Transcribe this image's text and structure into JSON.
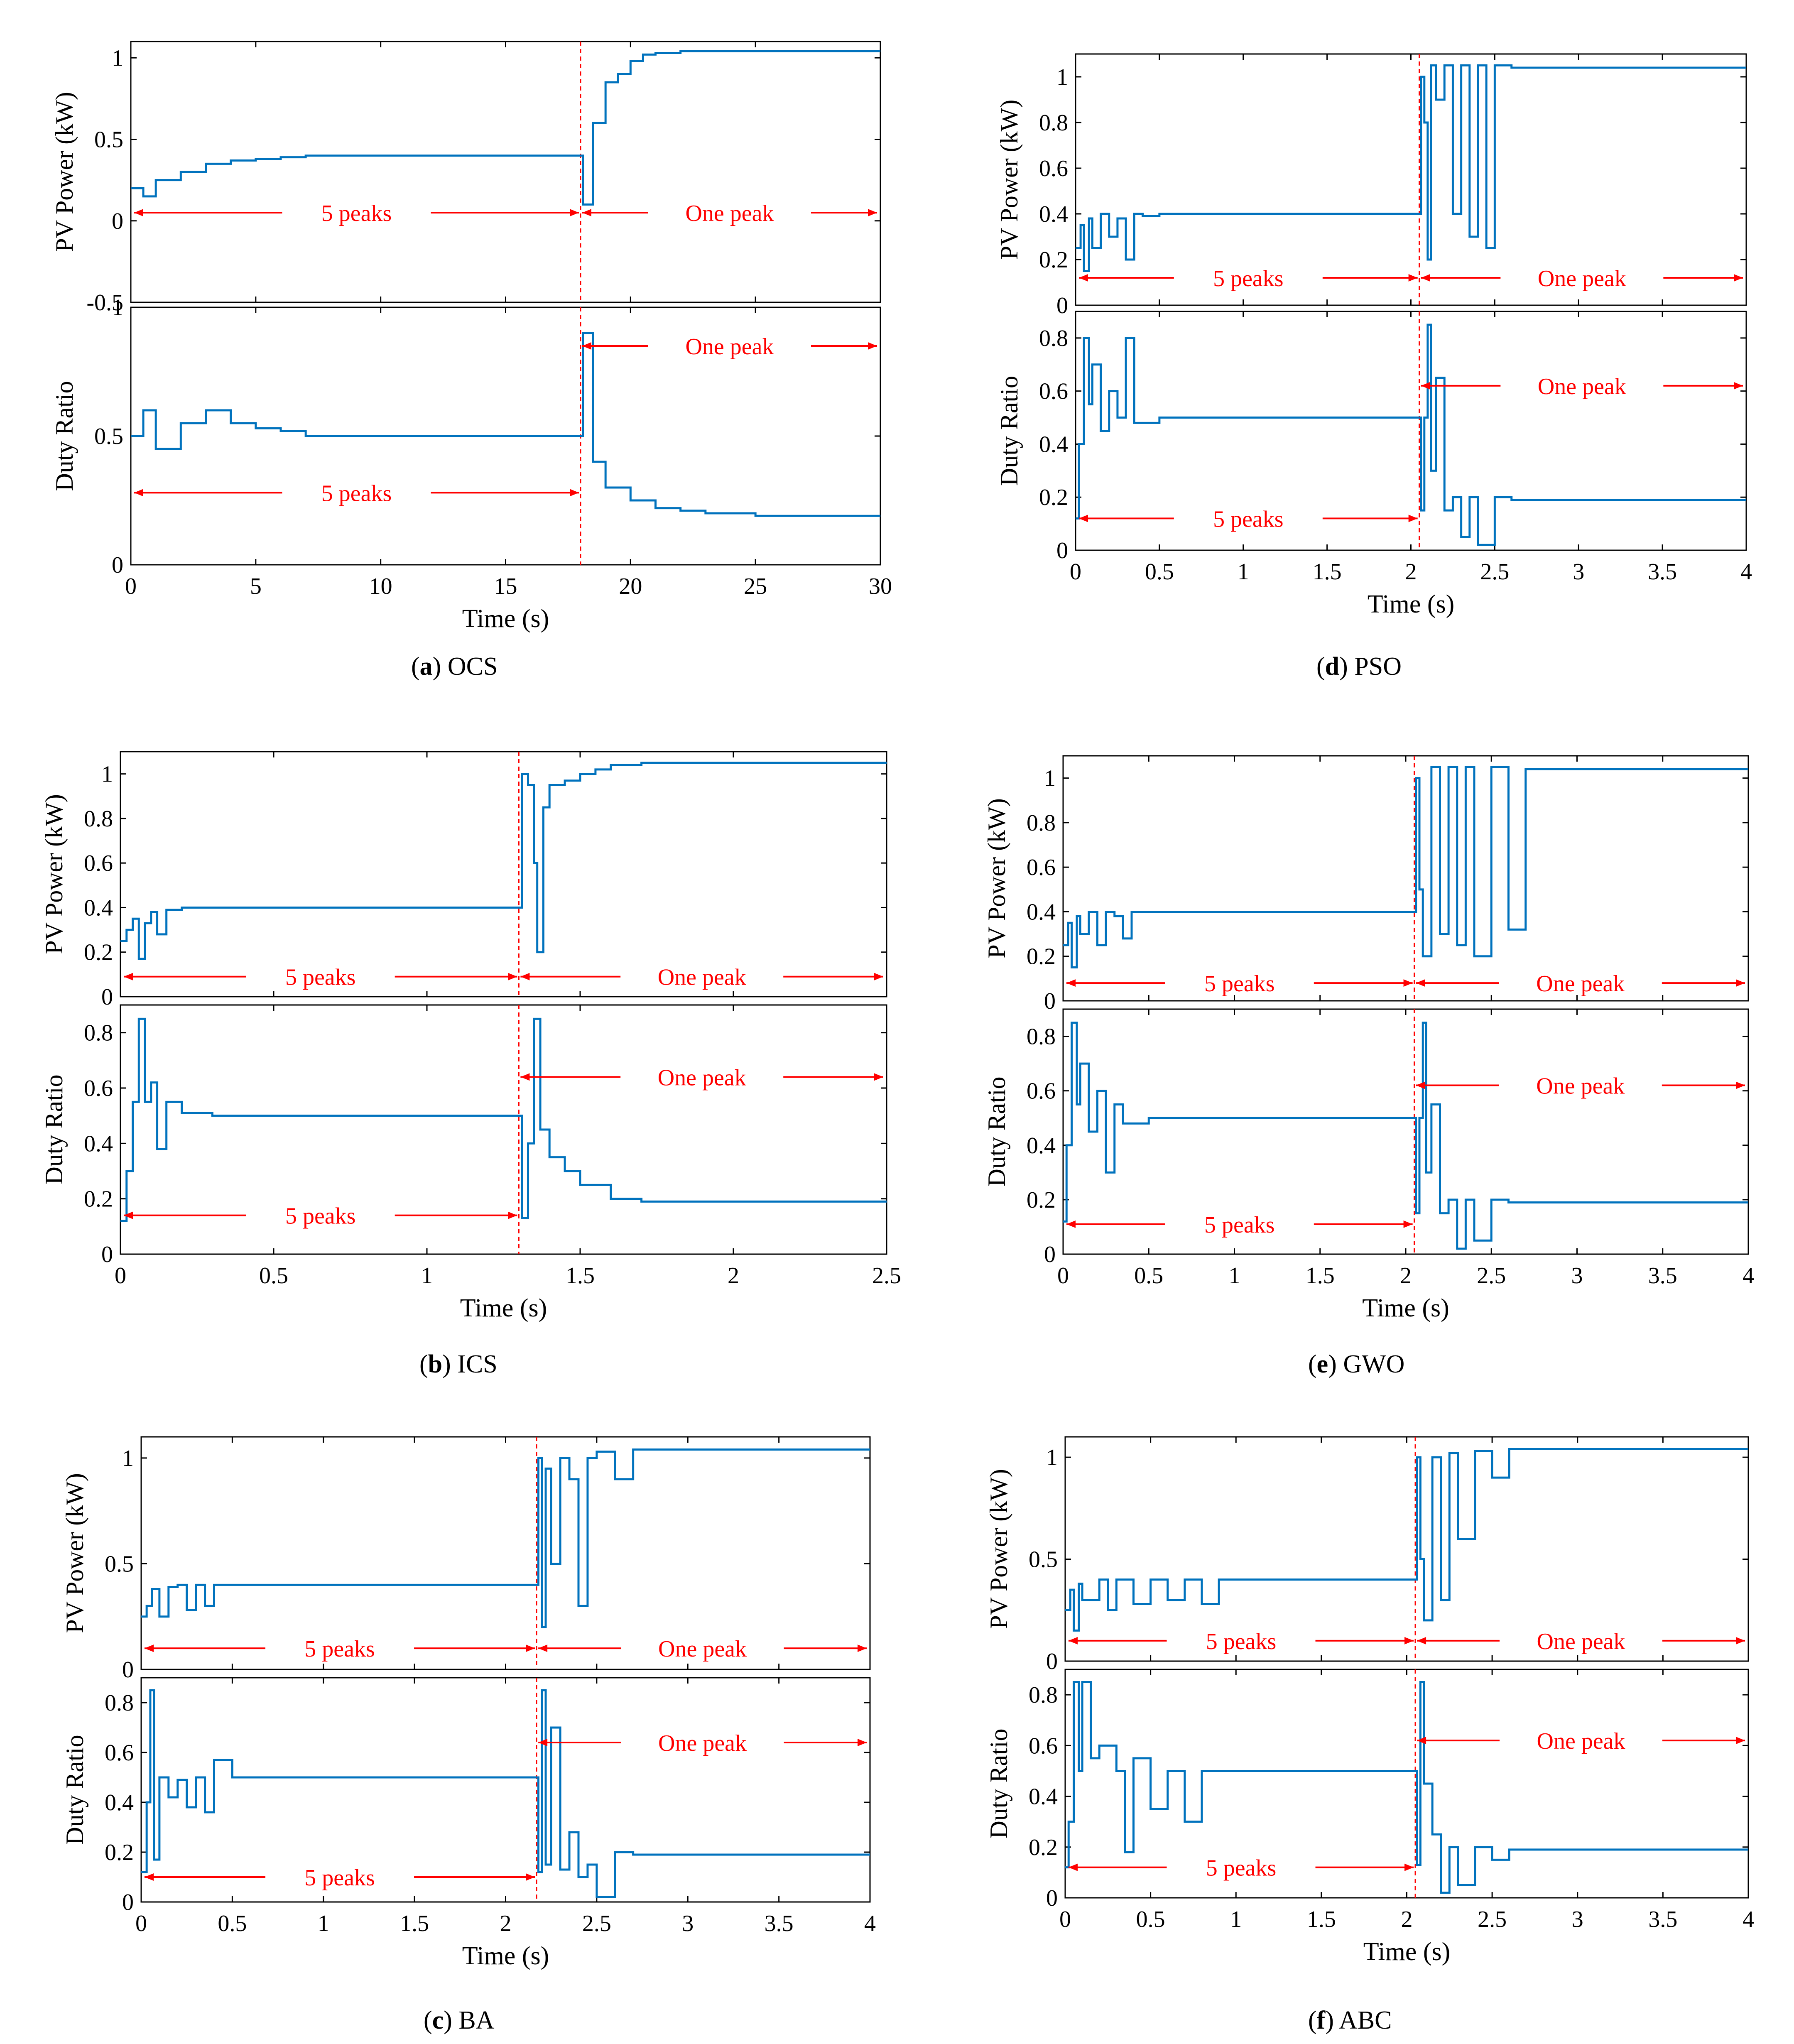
{
  "colors": {
    "signal": "#0072BD",
    "annotation": "#FF0000",
    "axis": "#000000"
  },
  "chart_data": [
    {
      "id": "a",
      "type": "line",
      "caption_letter": "a",
      "caption_name": "OCS",
      "xlabel": "Time (s)",
      "xlim": [
        0,
        30
      ],
      "xticks": [
        0,
        5,
        10,
        15,
        20,
        25,
        30
      ],
      "xtick_labels": [
        "0",
        "5",
        "10",
        "15",
        "20",
        "25",
        "30"
      ],
      "change_time": 18,
      "top": {
        "ylabel": "PV Power (kW)",
        "ylim": [
          -0.5,
          1.1
        ],
        "yticks": [
          -0.5,
          0,
          0.5,
          1
        ],
        "ytick_labels": [
          "-0.5",
          "0",
          "0.5",
          "1"
        ],
        "label_left": "5 peaks",
        "label_right": "One peak",
        "arrow_y": 0.05,
        "series": {
          "name": "PV Power",
          "x": [
            0,
            0.5,
            1,
            2,
            3,
            4,
            5,
            6,
            7,
            18,
            18.1,
            18.5,
            19,
            19.5,
            20,
            20.5,
            21,
            22,
            30
          ],
          "y": [
            0.2,
            0.15,
            0.25,
            0.3,
            0.35,
            0.37,
            0.38,
            0.39,
            0.4,
            0.4,
            0.1,
            0.6,
            0.85,
            0.9,
            0.98,
            1.02,
            1.03,
            1.04,
            1.04
          ]
        }
      },
      "bottom": {
        "ylabel": "Duty Ratio",
        "ylim": [
          0,
          1
        ],
        "yticks": [
          0,
          0.5,
          1
        ],
        "ytick_labels": [
          "0",
          "0.5",
          "1"
        ],
        "label_left": "5 peaks",
        "label_right": "One peak",
        "arrow_left_y": 0.28,
        "arrow_right_y": 0.85,
        "series": {
          "name": "Duty Ratio",
          "x": [
            0,
            0.5,
            1,
            2,
            3,
            4,
            5,
            6,
            7,
            18,
            18.1,
            18.5,
            19,
            20,
            21,
            22,
            23,
            24,
            25,
            30
          ],
          "y": [
            0.5,
            0.6,
            0.45,
            0.55,
            0.6,
            0.55,
            0.53,
            0.52,
            0.5,
            0.5,
            0.9,
            0.4,
            0.3,
            0.25,
            0.22,
            0.21,
            0.2,
            0.2,
            0.19,
            0.19
          ]
        }
      }
    },
    {
      "id": "b",
      "type": "line",
      "caption_letter": "b",
      "caption_name": "ICS",
      "xlabel": "Time (s)",
      "xlim": [
        0,
        2.5
      ],
      "xticks": [
        0,
        0.5,
        1,
        1.5,
        2,
        2.5
      ],
      "xtick_labels": [
        "0",
        "0.5",
        "1",
        "1.5",
        "2",
        "2.5"
      ],
      "change_time": 1.3,
      "top": {
        "ylabel": "PV Power (kW)",
        "ylim": [
          0,
          1.1
        ],
        "yticks": [
          0,
          0.2,
          0.4,
          0.6,
          0.8,
          1
        ],
        "ytick_labels": [
          "0",
          "0.2",
          "0.4",
          "0.6",
          "0.8",
          "1"
        ],
        "label_left": "5 peaks",
        "label_right": "One peak",
        "arrow_y": 0.09,
        "series": {
          "name": "PV Power",
          "x": [
            0,
            0.02,
            0.04,
            0.06,
            0.08,
            0.1,
            0.12,
            0.15,
            0.2,
            0.3,
            1.3,
            1.31,
            1.33,
            1.35,
            1.36,
            1.38,
            1.4,
            1.45,
            1.5,
            1.55,
            1.6,
            1.7,
            2.5
          ],
          "y": [
            0.25,
            0.3,
            0.35,
            0.17,
            0.33,
            0.38,
            0.28,
            0.39,
            0.4,
            0.4,
            0.4,
            1.0,
            0.95,
            0.6,
            0.2,
            0.85,
            0.95,
            0.97,
            1.0,
            1.02,
            1.04,
            1.05,
            1.05
          ]
        }
      },
      "bottom": {
        "ylabel": "Duty Ratio",
        "ylim": [
          0,
          0.9
        ],
        "yticks": [
          0,
          0.2,
          0.4,
          0.6,
          0.8
        ],
        "ytick_labels": [
          "0",
          "0.2",
          "0.4",
          "0.6",
          "0.8"
        ],
        "label_left": "5 peaks",
        "label_right": "One peak",
        "arrow_left_y": 0.14,
        "arrow_right_y": 0.64,
        "series": {
          "name": "Duty Ratio",
          "x": [
            0,
            0.02,
            0.04,
            0.06,
            0.08,
            0.1,
            0.12,
            0.15,
            0.2,
            0.3,
            1.3,
            1.31,
            1.33,
            1.35,
            1.37,
            1.4,
            1.45,
            1.5,
            1.6,
            1.7,
            2.5
          ],
          "y": [
            0.12,
            0.3,
            0.55,
            0.85,
            0.55,
            0.62,
            0.38,
            0.55,
            0.51,
            0.5,
            0.5,
            0.13,
            0.4,
            0.85,
            0.45,
            0.35,
            0.3,
            0.25,
            0.2,
            0.19,
            0.19
          ]
        }
      }
    },
    {
      "id": "c",
      "type": "line",
      "caption_letter": "c",
      "caption_name": "BA",
      "xlabel": "Time (s)",
      "xlim": [
        0,
        4
      ],
      "xticks": [
        0,
        0.5,
        1,
        1.5,
        2,
        2.5,
        3,
        3.5,
        4
      ],
      "xtick_labels": [
        "0",
        "0.5",
        "1",
        "1.5",
        "2",
        "2.5",
        "3",
        "3.5",
        "4"
      ],
      "change_time": 2.17,
      "top": {
        "ylabel": "PV Power (kW)",
        "ylim": [
          0,
          1.1
        ],
        "yticks": [
          0,
          0.5,
          1
        ],
        "ytick_labels": [
          "0",
          "0.5",
          "1"
        ],
        "label_left": "5 peaks",
        "label_right": "One peak",
        "arrow_y": 0.1,
        "series": {
          "name": "PV Power",
          "x": [
            0,
            0.03,
            0.06,
            0.1,
            0.15,
            0.2,
            0.25,
            0.3,
            0.35,
            0.4,
            0.5,
            2.17,
            2.18,
            2.2,
            2.22,
            2.25,
            2.3,
            2.35,
            2.4,
            2.45,
            2.5,
            2.6,
            2.7,
            4
          ],
          "y": [
            0.25,
            0.3,
            0.38,
            0.25,
            0.39,
            0.4,
            0.28,
            0.4,
            0.3,
            0.4,
            0.4,
            0.4,
            1.0,
            0.2,
            0.95,
            0.5,
            1.0,
            0.9,
            0.3,
            1.0,
            1.03,
            0.9,
            1.04,
            1.04
          ]
        }
      },
      "bottom": {
        "ylabel": "Duty Ratio",
        "ylim": [
          0,
          0.9
        ],
        "yticks": [
          0,
          0.2,
          0.4,
          0.6,
          0.8
        ],
        "ytick_labels": [
          "0",
          "0.2",
          "0.4",
          "0.6",
          "0.8"
        ],
        "label_left": "5 peaks",
        "label_right": "One peak",
        "arrow_left_y": 0.1,
        "arrow_right_y": 0.64,
        "series": {
          "name": "Duty Ratio",
          "x": [
            0,
            0.03,
            0.05,
            0.07,
            0.1,
            0.15,
            0.2,
            0.25,
            0.3,
            0.35,
            0.4,
            0.5,
            2.17,
            2.18,
            2.2,
            2.22,
            2.25,
            2.3,
            2.35,
            2.4,
            2.45,
            2.5,
            2.6,
            2.7,
            4
          ],
          "y": [
            0.12,
            0.4,
            0.85,
            0.17,
            0.5,
            0.42,
            0.49,
            0.38,
            0.5,
            0.36,
            0.57,
            0.5,
            0.5,
            0.12,
            0.85,
            0.15,
            0.7,
            0.13,
            0.28,
            0.1,
            0.15,
            0.02,
            0.2,
            0.19,
            0.19
          ]
        }
      }
    },
    {
      "id": "d",
      "type": "line",
      "caption_letter": "d",
      "caption_name": "PSO",
      "xlabel": "Time (s)",
      "xlim": [
        0,
        4
      ],
      "xticks": [
        0,
        0.5,
        1,
        1.5,
        2,
        2.5,
        3,
        3.5,
        4
      ],
      "xtick_labels": [
        "0",
        "0.5",
        "1",
        "1.5",
        "2",
        "2.5",
        "3",
        "3.5",
        "4"
      ],
      "change_time": 2.05,
      "top": {
        "ylabel": "PV Power (kW)",
        "ylim": [
          0,
          1.1
        ],
        "yticks": [
          0,
          0.2,
          0.4,
          0.6,
          0.8,
          1
        ],
        "ytick_labels": [
          "0",
          "0.2",
          "0.4",
          "0.6",
          "0.8",
          "1"
        ],
        "label_left": "5 peaks",
        "label_right": "One peak",
        "arrow_y": 0.12,
        "series": {
          "name": "PV Power",
          "x": [
            0,
            0.03,
            0.05,
            0.08,
            0.1,
            0.15,
            0.2,
            0.25,
            0.3,
            0.35,
            0.4,
            0.5,
            2.05,
            2.06,
            2.08,
            2.1,
            2.12,
            2.15,
            2.2,
            2.25,
            2.3,
            2.35,
            2.4,
            2.45,
            2.5,
            2.6,
            4
          ],
          "y": [
            0.25,
            0.35,
            0.15,
            0.38,
            0.25,
            0.4,
            0.3,
            0.38,
            0.2,
            0.4,
            0.39,
            0.4,
            0.4,
            1.0,
            0.8,
            0.2,
            1.05,
            0.9,
            1.05,
            0.4,
            1.05,
            0.3,
            1.05,
            0.25,
            1.05,
            1.04,
            1.04
          ]
        }
      },
      "bottom": {
        "ylabel": "Duty Ratio",
        "ylim": [
          0,
          0.9
        ],
        "yticks": [
          0,
          0.2,
          0.4,
          0.6,
          0.8
        ],
        "ytick_labels": [
          "0",
          "0.2",
          "0.4",
          "0.6",
          "0.8"
        ],
        "label_left": "5 peaks",
        "label_right": "One peak",
        "arrow_left_y": 0.12,
        "arrow_right_y": 0.62,
        "series": {
          "name": "Duty Ratio",
          "x": [
            0,
            0.02,
            0.05,
            0.08,
            0.1,
            0.15,
            0.2,
            0.25,
            0.3,
            0.35,
            0.5,
            2.05,
            2.06,
            2.08,
            2.1,
            2.12,
            2.15,
            2.2,
            2.25,
            2.3,
            2.35,
            2.4,
            2.5,
            2.6,
            4
          ],
          "y": [
            0.12,
            0.4,
            0.8,
            0.55,
            0.7,
            0.45,
            0.6,
            0.5,
            0.8,
            0.48,
            0.5,
            0.5,
            0.15,
            0.5,
            0.85,
            0.3,
            0.65,
            0.15,
            0.2,
            0.05,
            0.2,
            0.02,
            0.2,
            0.19,
            0.19
          ]
        }
      }
    },
    {
      "id": "e",
      "type": "line",
      "caption_letter": "e",
      "caption_name": "GWO",
      "xlabel": "Time (s)",
      "xlim": [
        0,
        4
      ],
      "xticks": [
        0,
        0.5,
        1,
        1.5,
        2,
        2.5,
        3,
        3.5,
        4
      ],
      "xtick_labels": [
        "0",
        "0.5",
        "1",
        "1.5",
        "2",
        "2.5",
        "3",
        "3.5",
        "4"
      ],
      "change_time": 2.05,
      "top": {
        "ylabel": "PV Power (kW)",
        "ylim": [
          0,
          1.1
        ],
        "yticks": [
          0,
          0.2,
          0.4,
          0.6,
          0.8,
          1
        ],
        "ytick_labels": [
          "0",
          "0.2",
          "0.4",
          "0.6",
          "0.8",
          "1"
        ],
        "label_left": "5 peaks",
        "label_right": "One peak",
        "arrow_y": 0.08,
        "series": {
          "name": "PV Power",
          "x": [
            0,
            0.03,
            0.05,
            0.08,
            0.1,
            0.15,
            0.2,
            0.25,
            0.3,
            0.35,
            0.4,
            0.5,
            2.05,
            2.06,
            2.08,
            2.1,
            2.15,
            2.2,
            2.25,
            2.3,
            2.35,
            2.4,
            2.5,
            2.6,
            2.7,
            4
          ],
          "y": [
            0.25,
            0.35,
            0.15,
            0.38,
            0.3,
            0.4,
            0.25,
            0.4,
            0.38,
            0.28,
            0.4,
            0.4,
            0.4,
            1.0,
            0.5,
            0.2,
            1.05,
            0.3,
            1.05,
            0.25,
            1.05,
            0.2,
            1.05,
            0.32,
            1.04,
            1.04
          ]
        }
      },
      "bottom": {
        "ylabel": "Duty Ratio",
        "ylim": [
          0,
          0.9
        ],
        "yticks": [
          0,
          0.2,
          0.4,
          0.6,
          0.8
        ],
        "ytick_labels": [
          "0",
          "0.2",
          "0.4",
          "0.6",
          "0.8"
        ],
        "label_left": "5 peaks",
        "label_right": "One peak",
        "arrow_left_y": 0.11,
        "arrow_right_y": 0.62,
        "series": {
          "name": "Duty Ratio",
          "x": [
            0,
            0.02,
            0.05,
            0.08,
            0.1,
            0.15,
            0.2,
            0.25,
            0.3,
            0.35,
            0.5,
            2.05,
            2.06,
            2.08,
            2.1,
            2.12,
            2.15,
            2.2,
            2.25,
            2.3,
            2.35,
            2.4,
            2.5,
            2.6,
            4
          ],
          "y": [
            0.12,
            0.4,
            0.85,
            0.55,
            0.7,
            0.45,
            0.6,
            0.3,
            0.55,
            0.48,
            0.5,
            0.5,
            0.15,
            0.5,
            0.85,
            0.3,
            0.55,
            0.15,
            0.2,
            0.02,
            0.2,
            0.05,
            0.2,
            0.19,
            0.19
          ]
        }
      }
    },
    {
      "id": "f",
      "type": "line",
      "caption_letter": "f",
      "caption_name": "ABC",
      "xlabel": "Time (s)",
      "xlim": [
        0,
        4
      ],
      "xticks": [
        0,
        0.5,
        1,
        1.5,
        2,
        2.5,
        3,
        3.5,
        4
      ],
      "xtick_labels": [
        "0",
        "0.5",
        "1",
        "1.5",
        "2",
        "2.5",
        "3",
        "3.5",
        "4"
      ],
      "change_time": 2.05,
      "top": {
        "ylabel": "PV Power (kW)",
        "ylim": [
          0,
          1.1
        ],
        "yticks": [
          0,
          0.5,
          1
        ],
        "ytick_labels": [
          "0",
          "0.5",
          "1"
        ],
        "label_left": "5 peaks",
        "label_right": "One peak",
        "arrow_y": 0.1,
        "series": {
          "name": "PV Power",
          "x": [
            0,
            0.03,
            0.05,
            0.08,
            0.1,
            0.2,
            0.25,
            0.3,
            0.4,
            0.5,
            0.6,
            0.7,
            0.8,
            0.9,
            1.0,
            1.1,
            2.05,
            2.06,
            2.08,
            2.1,
            2.15,
            2.2,
            2.25,
            2.3,
            2.4,
            2.5,
            2.6,
            2.7,
            4
          ],
          "y": [
            0.25,
            0.35,
            0.15,
            0.38,
            0.3,
            0.4,
            0.25,
            0.4,
            0.28,
            0.4,
            0.3,
            0.4,
            0.28,
            0.4,
            0.4,
            0.4,
            0.4,
            1.0,
            0.5,
            0.2,
            1.0,
            0.3,
            1.02,
            0.6,
            1.03,
            0.9,
            1.04,
            1.04,
            1.04
          ]
        }
      },
      "bottom": {
        "ylabel": "Duty Ratio",
        "ylim": [
          0,
          0.9
        ],
        "yticks": [
          0,
          0.2,
          0.4,
          0.6,
          0.8
        ],
        "ytick_labels": [
          "0",
          "0.2",
          "0.4",
          "0.6",
          "0.8"
        ],
        "label_left": "5 peaks",
        "label_right": "One peak",
        "arrow_left_y": 0.12,
        "arrow_right_y": 0.62,
        "series": {
          "name": "Duty Ratio",
          "x": [
            0,
            0.02,
            0.05,
            0.08,
            0.1,
            0.15,
            0.2,
            0.3,
            0.35,
            0.4,
            0.5,
            0.6,
            0.7,
            0.8,
            1.0,
            2.05,
            2.06,
            2.08,
            2.1,
            2.15,
            2.2,
            2.25,
            2.3,
            2.4,
            2.5,
            2.6,
            4
          ],
          "y": [
            0.12,
            0.3,
            0.85,
            0.5,
            0.85,
            0.55,
            0.6,
            0.5,
            0.18,
            0.55,
            0.35,
            0.5,
            0.3,
            0.5,
            0.5,
            0.5,
            0.13,
            0.85,
            0.45,
            0.25,
            0.02,
            0.2,
            0.05,
            0.2,
            0.15,
            0.19,
            0.19
          ]
        }
      }
    }
  ]
}
